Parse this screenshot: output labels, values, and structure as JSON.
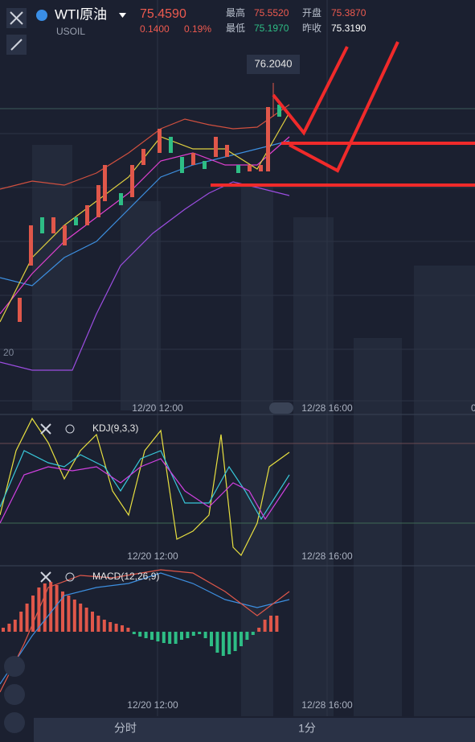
{
  "header": {
    "symbol": "WTI原油",
    "code": "USOIL",
    "price": "75.4590",
    "change": "0.1400",
    "change_pct": "0.19%",
    "stats": [
      {
        "label": "最高",
        "value": "75.5520"
      },
      {
        "label": "开盘",
        "value": "75.3870"
      },
      {
        "label": "最低",
        "value": "75.1970"
      },
      {
        "label": "昨收",
        "value": "75.3190"
      }
    ]
  },
  "main_chart": {
    "high_marker": "76.2040",
    "y_label_partial": "20",
    "x_labels": [
      "12/20 12:00",
      "12/28 16:00"
    ],
    "x_label_partial": "0"
  },
  "kdj_panel": {
    "title": "KDJ(9,3,3)",
    "x_labels": [
      "12/20 12:00",
      "12/28 16:00"
    ]
  },
  "macd_panel": {
    "title": "MACD(12,26,9)",
    "x_labels": [
      "12/20 12:00",
      "12/28 16:00"
    ]
  },
  "tabs": [
    "分时",
    "1分"
  ]
}
